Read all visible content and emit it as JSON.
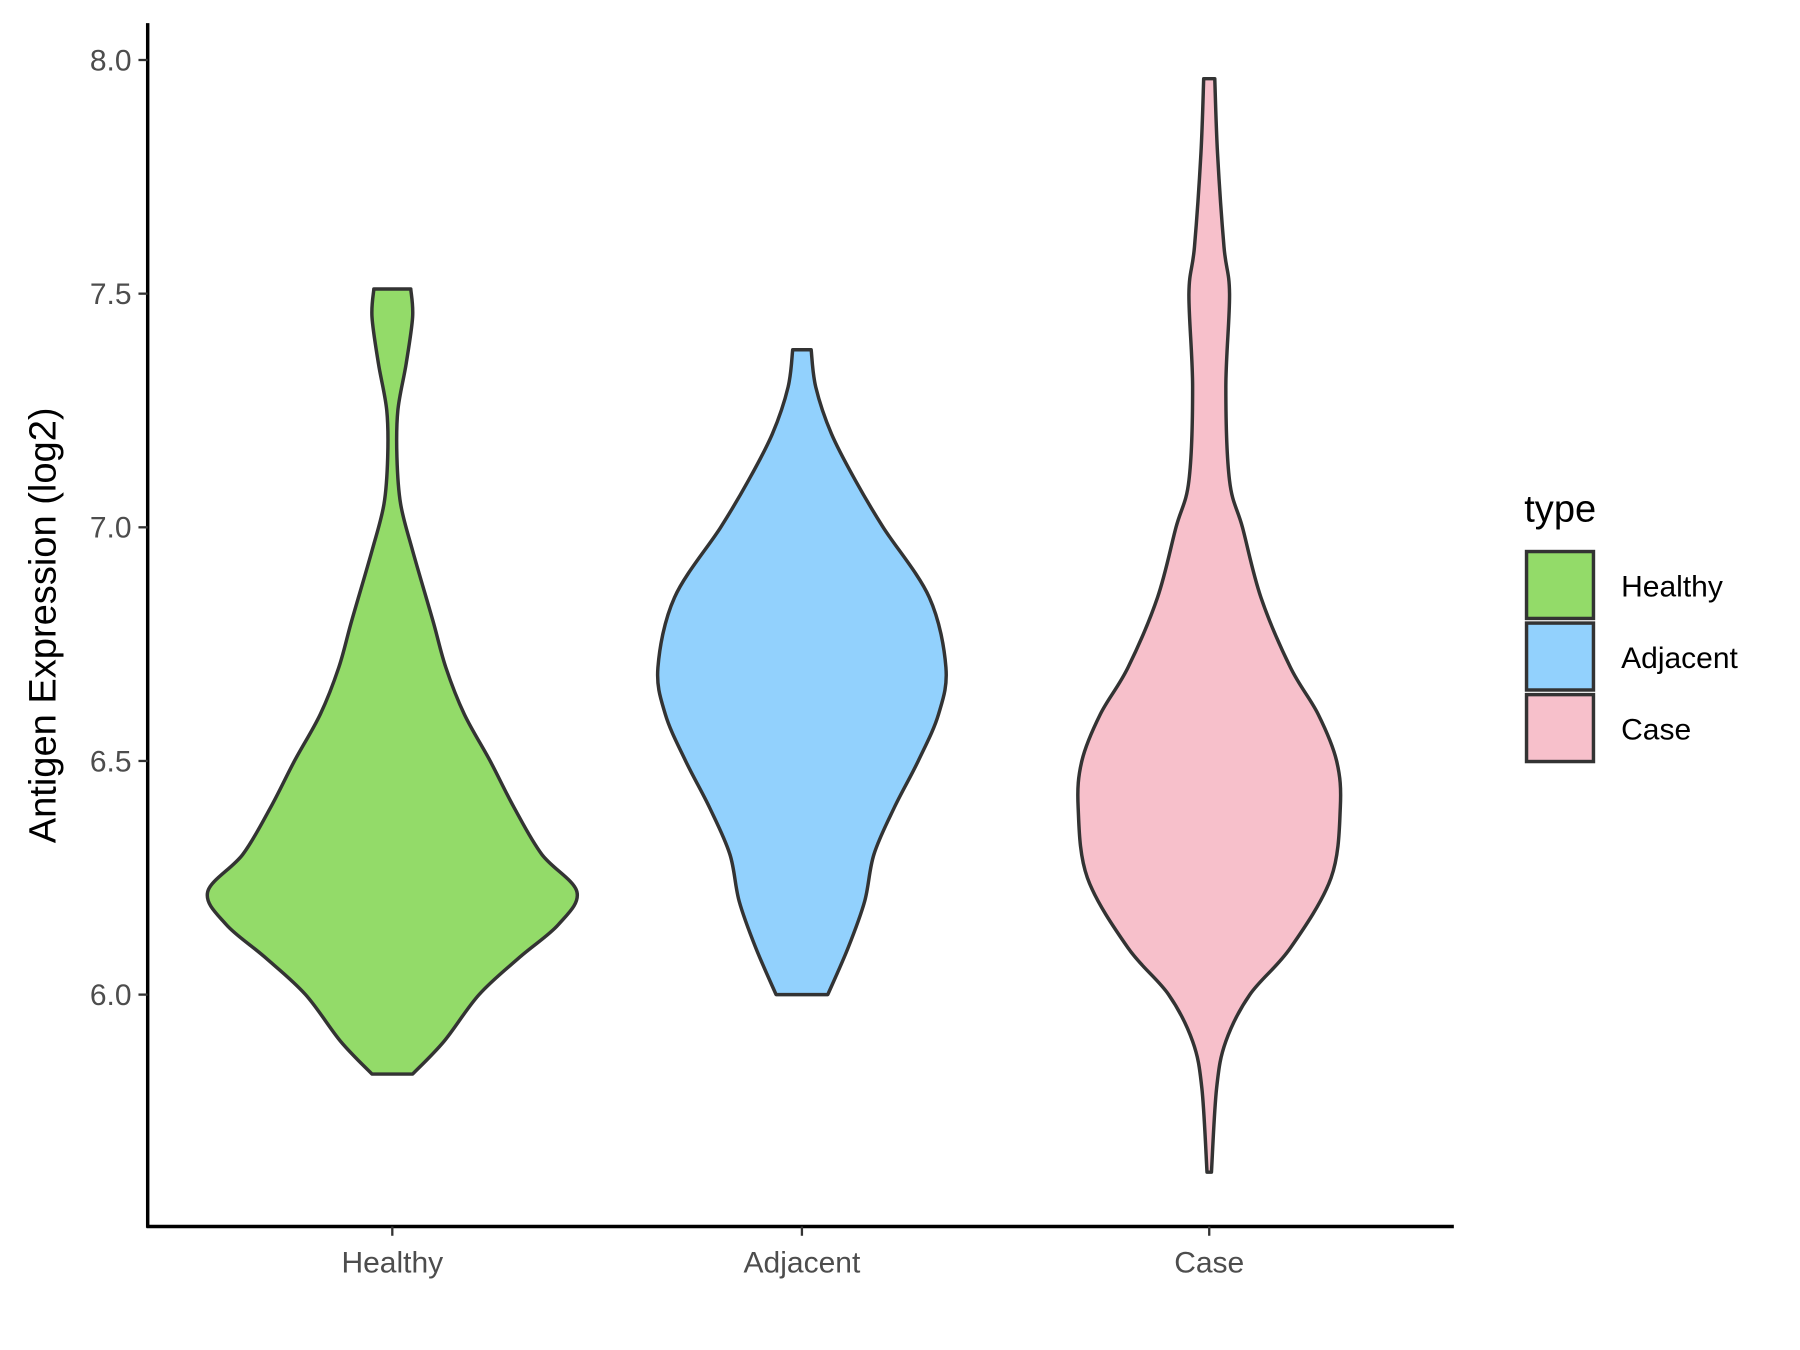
{
  "chart_data": {
    "type": "violin",
    "title": "",
    "xlabel": "",
    "ylabel": "Antigen Expression (log2)",
    "ylim": [
      5.5,
      8.08
    ],
    "yticks": [
      "6.0",
      "6.5",
      "7.0",
      "7.5",
      "8.0"
    ],
    "categories": [
      "Healthy",
      "Adjacent",
      "Case"
    ],
    "legend": {
      "title": "type",
      "position": "right",
      "entries": [
        "Healthy",
        "Adjacent",
        "Case"
      ]
    },
    "series": [
      {
        "name": "Healthy",
        "color": "#93DB69",
        "min": 5.83,
        "max": 7.51,
        "density": [
          [
            7.51,
            0.1
          ],
          [
            7.45,
            0.11
          ],
          [
            7.35,
            0.075
          ],
          [
            7.25,
            0.03
          ],
          [
            7.15,
            0.025
          ],
          [
            7.05,
            0.045
          ],
          [
            6.95,
            0.11
          ],
          [
            6.8,
            0.22
          ],
          [
            6.7,
            0.29
          ],
          [
            6.6,
            0.39
          ],
          [
            6.5,
            0.53
          ],
          [
            6.4,
            0.66
          ],
          [
            6.3,
            0.81
          ],
          [
            6.22,
            1.0
          ],
          [
            6.15,
            0.9
          ],
          [
            6.08,
            0.69
          ],
          [
            6.0,
            0.47
          ],
          [
            5.9,
            0.28
          ],
          [
            5.83,
            0.11
          ]
        ]
      },
      {
        "name": "Adjacent",
        "color": "#92D1FD",
        "min": 6.0,
        "max": 7.38,
        "density": [
          [
            7.38,
            0.05
          ],
          [
            7.3,
            0.075
          ],
          [
            7.2,
            0.16
          ],
          [
            7.1,
            0.29
          ],
          [
            7.0,
            0.44
          ],
          [
            6.85,
            0.69
          ],
          [
            6.7,
            0.78
          ],
          [
            6.6,
            0.74
          ],
          [
            6.5,
            0.63
          ],
          [
            6.4,
            0.5
          ],
          [
            6.3,
            0.39
          ],
          [
            6.2,
            0.34
          ],
          [
            6.1,
            0.25
          ],
          [
            6.0,
            0.14
          ]
        ]
      },
      {
        "name": "Case",
        "color": "#F7C0CB",
        "min": 5.62,
        "max": 7.96,
        "density": [
          [
            7.96,
            0.03
          ],
          [
            7.8,
            0.045
          ],
          [
            7.6,
            0.08
          ],
          [
            7.5,
            0.11
          ],
          [
            7.3,
            0.09
          ],
          [
            7.1,
            0.11
          ],
          [
            7.0,
            0.18
          ],
          [
            6.85,
            0.28
          ],
          [
            6.7,
            0.44
          ],
          [
            6.6,
            0.59
          ],
          [
            6.5,
            0.69
          ],
          [
            6.4,
            0.71
          ],
          [
            6.25,
            0.66
          ],
          [
            6.1,
            0.44
          ],
          [
            6.0,
            0.22
          ],
          [
            5.9,
            0.09
          ],
          [
            5.8,
            0.04
          ],
          [
            5.62,
            0.012
          ]
        ]
      }
    ]
  }
}
